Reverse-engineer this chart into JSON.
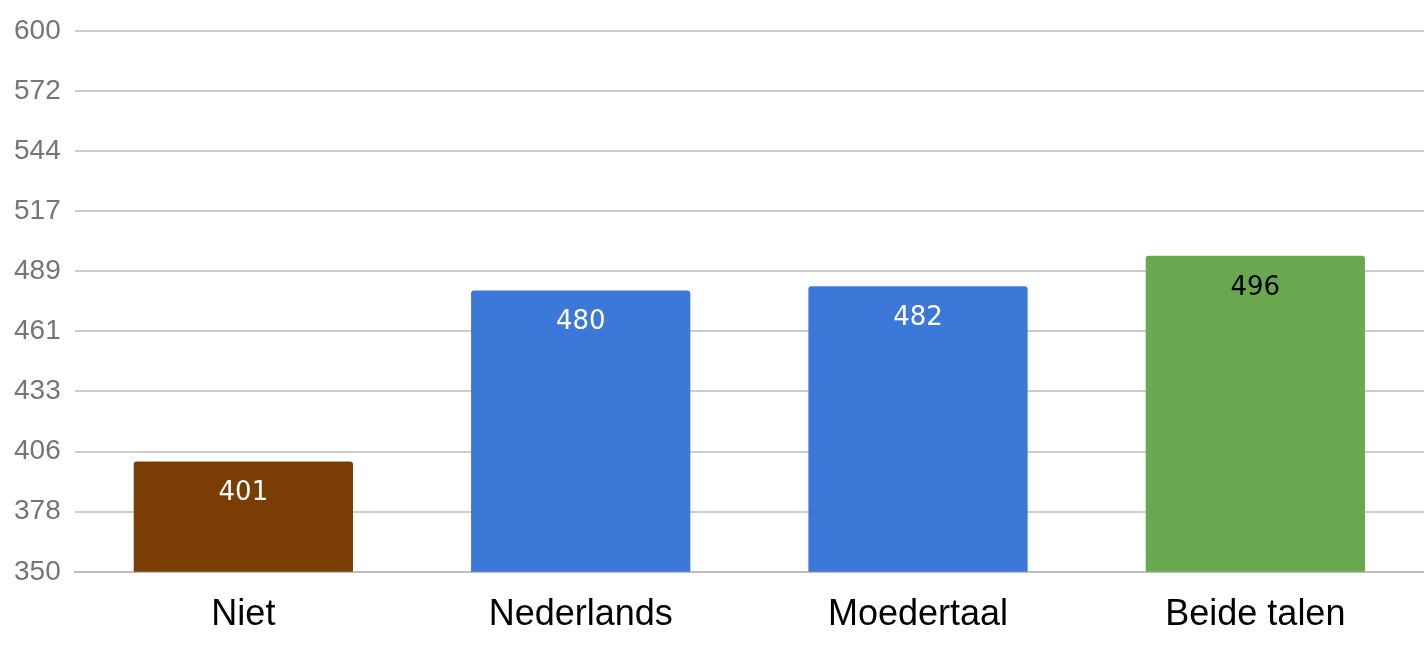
{
  "chart_data": {
    "type": "bar",
    "categories": [
      "Niet",
      "Nederlands",
      "Moedertaal",
      "Beide talen"
    ],
    "values": [
      401,
      480,
      482,
      496
    ],
    "colors": [
      "#7a3e05",
      "#3c78d8",
      "#3c78d8",
      "#6aa84f"
    ],
    "ylim": [
      350,
      600
    ],
    "yticks": [
      350,
      {
        "value": 377.78,
        "label": "378"
      },
      {
        "value": 405.56,
        "label": "406"
      },
      {
        "value": 433.33,
        "label": "433"
      },
      {
        "value": 461.11,
        "label": "461"
      },
      {
        "value": 488.89,
        "label": "489"
      },
      {
        "value": 516.67,
        "label": "517"
      },
      {
        "value": 544.44,
        "label": "544"
      },
      {
        "value": 572.22,
        "label": "572"
      },
      600
    ],
    "grid": "y",
    "legend": false,
    "data_labels": true
  }
}
